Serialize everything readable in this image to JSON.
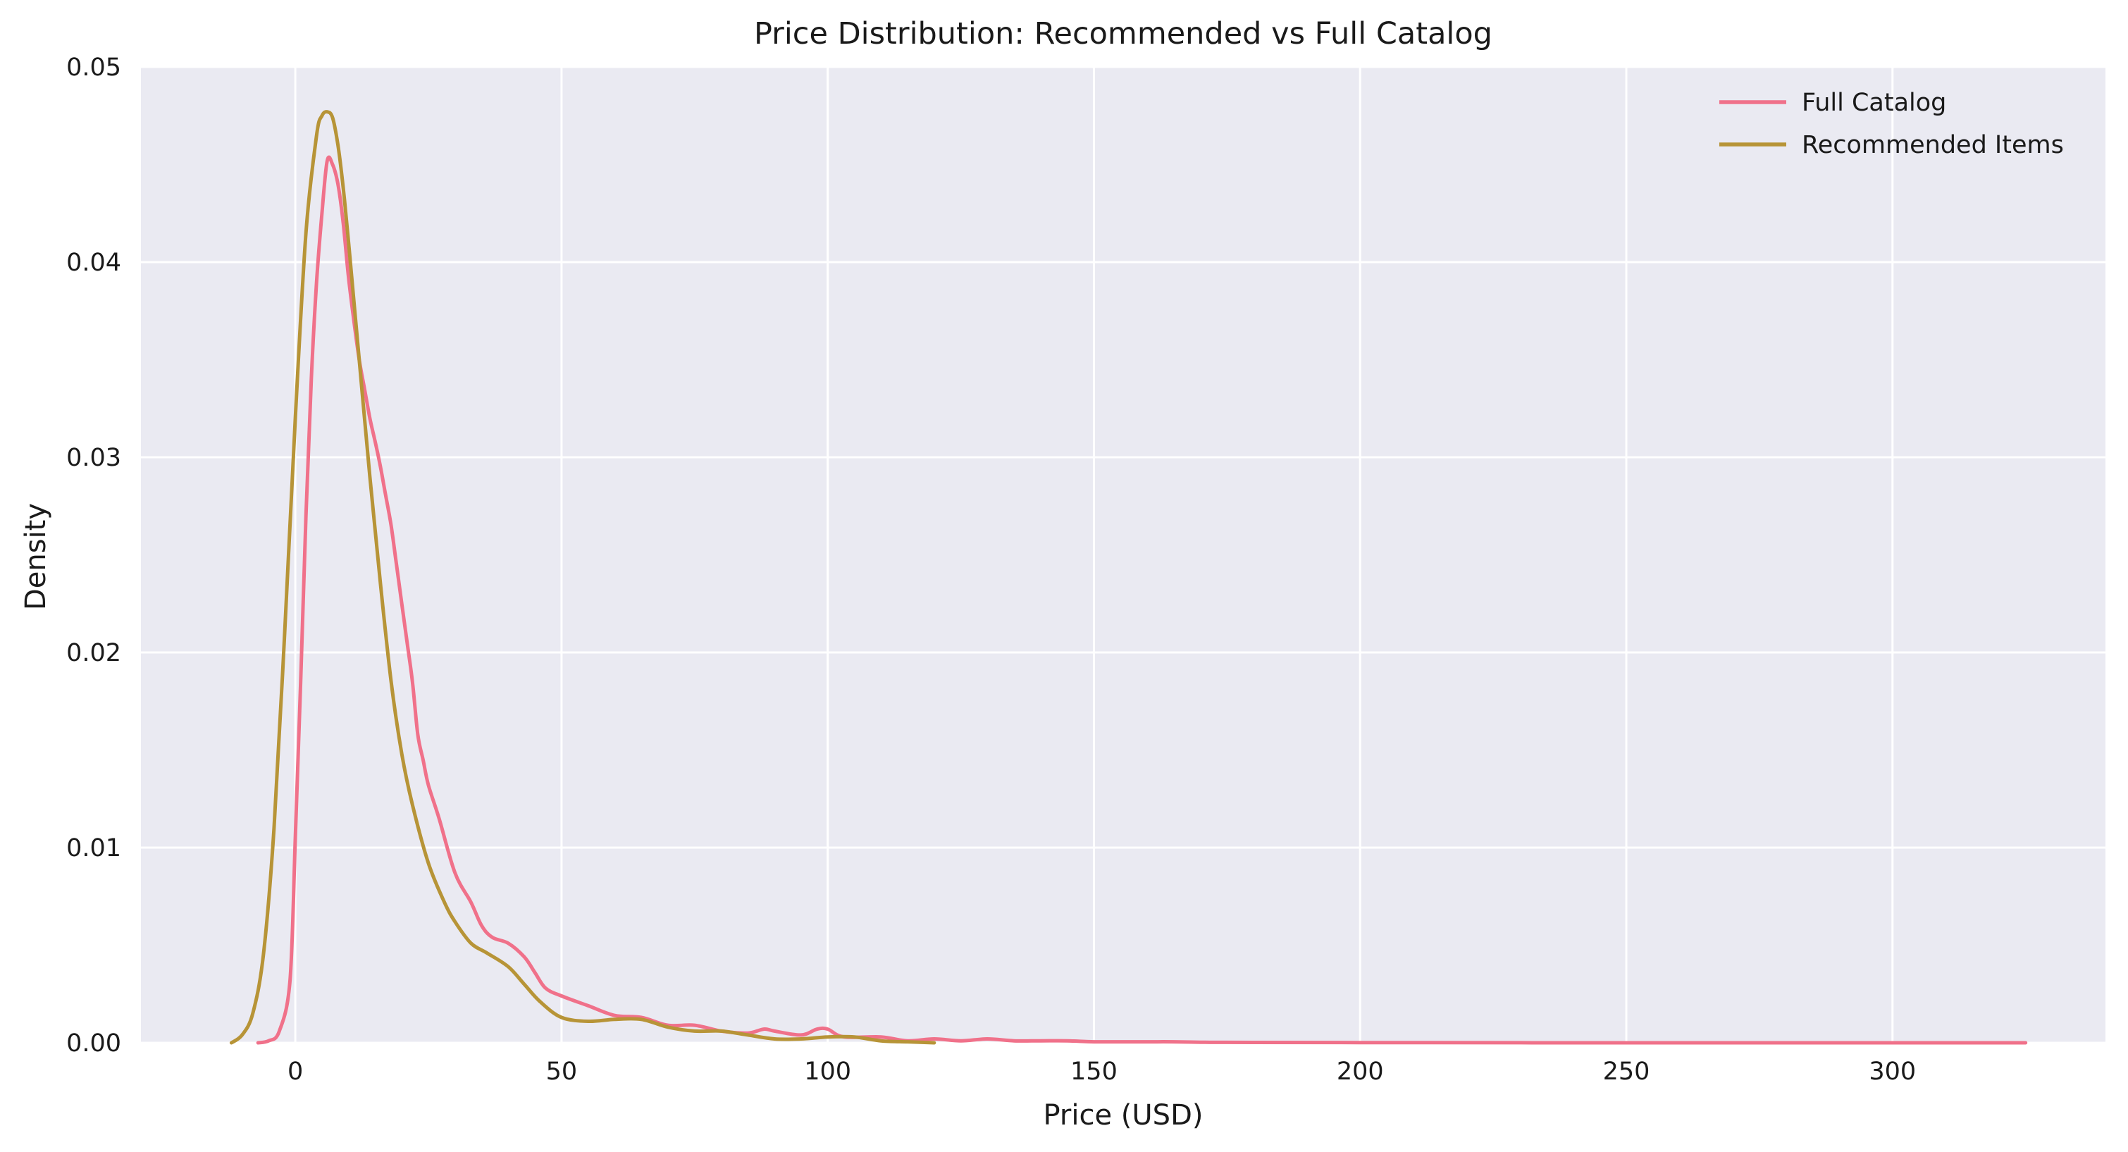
{
  "chart_data": {
    "type": "line",
    "title": "Price Distribution: Recommended vs Full Catalog",
    "xlabel": "Price (USD)",
    "ylabel": "Density",
    "xlim": [
      -29,
      340
    ],
    "ylim": [
      0,
      0.05
    ],
    "x_ticks": [
      0,
      50,
      100,
      150,
      200,
      250,
      300
    ],
    "x_tick_labels": [
      "0",
      "50",
      "100",
      "150",
      "200",
      "250",
      "300"
    ],
    "y_ticks": [
      0,
      0.01,
      0.02,
      0.03,
      0.04,
      0.05
    ],
    "y_tick_labels": [
      "0.00",
      "0.01",
      "0.02",
      "0.03",
      "0.04",
      "0.05"
    ],
    "grid": true,
    "legend_position": "top-right",
    "background": "#eaeaf2",
    "series": [
      {
        "name": "Full Catalog",
        "color": "#f0718a",
        "x": [
          -7,
          -5,
          -3,
          -1,
          0,
          1,
          2,
          3,
          4,
          5,
          6,
          7,
          8,
          9,
          10,
          11,
          12,
          13,
          14,
          15,
          16,
          17,
          18,
          19,
          20,
          21,
          22,
          23,
          24,
          25,
          27,
          30,
          33,
          35,
          37,
          40,
          43,
          45,
          47,
          50,
          55,
          60,
          65,
          70,
          75,
          80,
          85,
          88,
          90,
          95,
          98,
          100,
          103,
          110,
          115,
          120,
          125,
          130,
          135,
          140,
          145,
          150,
          155,
          160,
          165,
          170,
          175,
          200,
          250,
          300,
          325
        ],
        "y": [
          0,
          0.0001,
          0.0006,
          0.0032,
          0.0105,
          0.0185,
          0.027,
          0.034,
          0.039,
          0.0425,
          0.0452,
          0.045,
          0.044,
          0.042,
          0.0392,
          0.037,
          0.035,
          0.0335,
          0.032,
          0.0308,
          0.0295,
          0.028,
          0.0265,
          0.0245,
          0.0225,
          0.0205,
          0.0185,
          0.0158,
          0.0145,
          0.0132,
          0.0115,
          0.0087,
          0.0072,
          0.006,
          0.0054,
          0.0051,
          0.0044,
          0.0036,
          0.0028,
          0.0024,
          0.0019,
          0.0014,
          0.0013,
          0.0009,
          0.0009,
          0.0006,
          0.0005,
          0.0007,
          0.0006,
          0.0004,
          0.0007,
          0.0007,
          0.0003,
          0.0003,
          0.0001,
          0.0002,
          0.0001,
          0.0002,
          0.0001,
          0.0001,
          0.0001,
          5e-05,
          5e-05,
          5e-05,
          5e-05,
          3e-05,
          2e-05,
          1e-05,
          0,
          0,
          0
        ]
      },
      {
        "name": "Recommended Items",
        "color": "#b79437",
        "x": [
          -12,
          -10,
          -8,
          -6,
          -4,
          -2,
          0,
          2,
          4,
          5,
          6,
          7,
          8,
          9,
          10,
          12,
          14,
          16,
          18,
          20,
          22,
          25,
          28,
          30,
          33,
          36,
          40,
          43,
          46,
          50,
          55,
          60,
          65,
          70,
          75,
          80,
          85,
          90,
          95,
          100,
          105,
          110,
          115,
          120
        ],
        "y": [
          0,
          0.0004,
          0.0015,
          0.0045,
          0.011,
          0.021,
          0.032,
          0.0415,
          0.0465,
          0.0475,
          0.0477,
          0.0474,
          0.046,
          0.0438,
          0.041,
          0.035,
          0.029,
          0.0235,
          0.0185,
          0.0148,
          0.0122,
          0.0092,
          0.0072,
          0.0062,
          0.0051,
          0.0046,
          0.0039,
          0.003,
          0.0021,
          0.0013,
          0.0011,
          0.0012,
          0.0012,
          0.0008,
          0.0006,
          0.0006,
          0.0004,
          0.0002,
          0.0002,
          0.0003,
          0.0003,
          0.0001,
          5e-05,
          0
        ]
      }
    ]
  }
}
